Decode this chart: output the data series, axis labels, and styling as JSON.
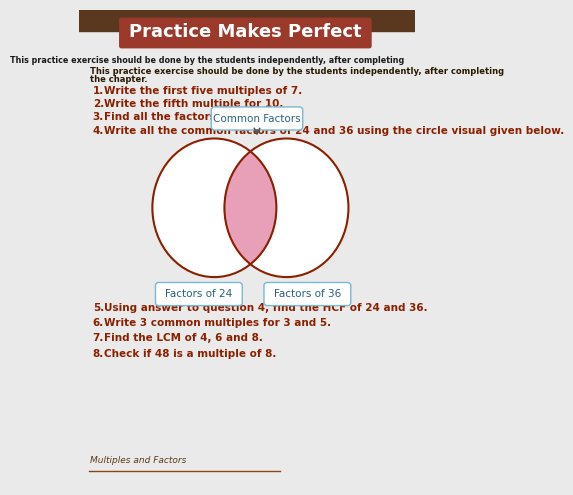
{
  "title": "Practice Makes Perfect",
  "title_bg_color": "#9B3A2A",
  "title_text_color": "#ffffff",
  "subtitle_line1": "This practice exercise should be done by the students independently, after completing",
  "subtitle_line2": "the chapter.",
  "questions": [
    "Write the first five multiples of 7.",
    "Write the fifth multiple for 10.",
    "Find all the factors of 40.",
    "Write all the common factors of 24 and 36 using the circle visual given below."
  ],
  "questions_lower": [
    "Using answer to question 4, find the HCF of 24 and 36.",
    "Write 3 common multiples for 3 and 5.",
    "Find the LCM of 4, 6 and 8.",
    "Check if 48 is a multiple of 8."
  ],
  "q_numbers_lower": [
    "5.",
    "6.",
    "7.",
    "8."
  ],
  "question_color": "#8B2000",
  "footer": "Multiples and Factors",
  "footer_color": "#5a3a1a",
  "venn_left_label": "Factors of 24",
  "venn_right_label": "Factors of 36",
  "venn_top_label": "Common Factors",
  "venn_circle_color": "#8B2000",
  "venn_fill_color": "#e8a0b8",
  "page_bg_color": "#eaeaea",
  "photo_strip_color": "#5a3820"
}
